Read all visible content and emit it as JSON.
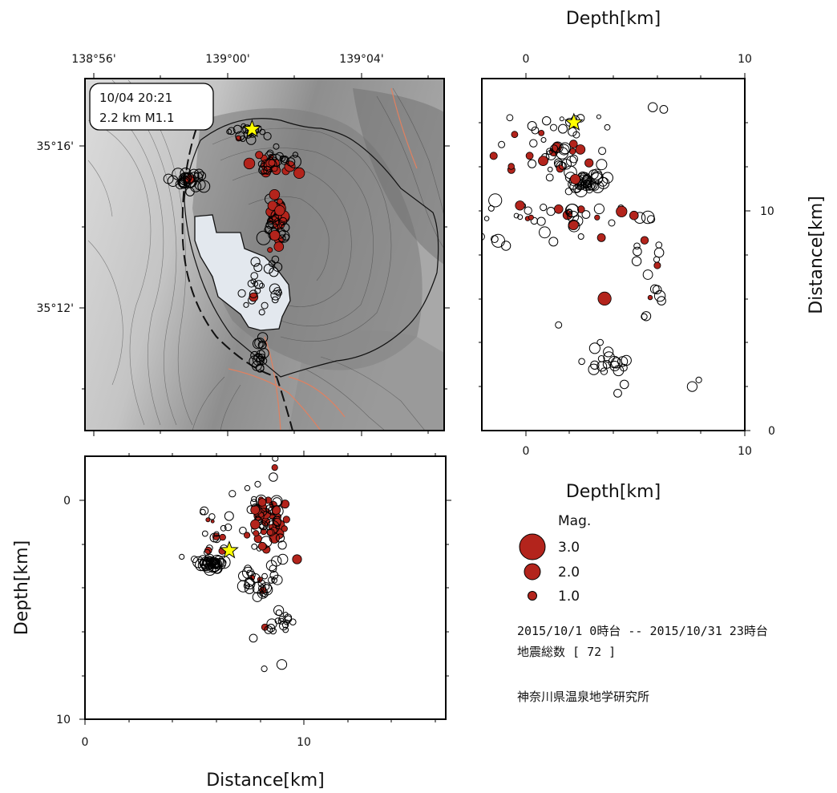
{
  "colors": {
    "quake_red": "#b3241c",
    "quake_outline": "#000000",
    "star_fill": "#ffff00",
    "caldera_fill": "#e3e8ee",
    "fault_line": "#e08060"
  },
  "map_panel": {
    "lon_ticks": [
      "138°56'",
      "139°00'",
      "139°04'"
    ],
    "lat_ticks": [
      "35°16'",
      "35°12'"
    ],
    "annotation": {
      "line1": "10/04 20:21",
      "line2": "2.2 km M1.1"
    }
  },
  "cross_section_ns": {
    "xlabel": "Depth[km]",
    "ylabel": "Distance[km]",
    "top_ticks": [
      "0",
      "10"
    ],
    "bottom_ticks": [
      "0",
      "10"
    ],
    "right_ticks": [
      "10",
      "0"
    ]
  },
  "cross_section_ew": {
    "xlabel": "Distance[km]",
    "ylabel": "Depth[km]",
    "x_ticks": [
      "0",
      "10"
    ],
    "y_ticks": [
      "0",
      "10"
    ]
  },
  "legend": {
    "title": "Mag.",
    "items": [
      {
        "label": "3.0",
        "mag": 3.0
      },
      {
        "label": "2.0",
        "mag": 2.0
      },
      {
        "label": "1.0",
        "mag": 1.0
      }
    ]
  },
  "info": {
    "period": "2015/10/1 0時台 -- 2015/10/31 23時台",
    "count_line": "地震総数 [ 72 ]",
    "institute": "神奈川県温泉地学研究所"
  },
  "chart_data": [
    {
      "type": "scatter",
      "panel": "map",
      "x_name": "longitude",
      "y_name": "latitude",
      "xlim": [
        138.9,
        139.13
      ],
      "ylim": [
        35.134,
        35.301
      ],
      "series": [
        {
          "clusters": [
            {
              "x": 138.967,
              "y": 35.253,
              "spread": [
                0.005,
                0.002
              ],
              "n": 30,
              "red_frac": 0.05,
              "mag": [
                0.8,
                1.4
              ]
            },
            {
              "x": 139.02,
              "y": 35.261,
              "spread": [
                0.007,
                0.003
              ],
              "n": 40,
              "red_frac": 0.4,
              "mag": [
                0.4,
                1.6
              ]
            },
            {
              "x": 139.022,
              "y": 35.233,
              "spread": [
                0.003,
                0.007
              ],
              "n": 45,
              "red_frac": 0.6,
              "mag": [
                0.5,
                1.7
              ]
            },
            {
              "x": 139.006,
              "y": 35.276,
              "spread": [
                0.006,
                0.002
              ],
              "n": 18,
              "red_frac": 0.1,
              "mag": [
                0.3,
                1.1
              ]
            },
            {
              "x": 139.012,
              "y": 35.203,
              "spread": [
                0.008,
                0.007
              ],
              "n": 25,
              "red_frac": 0.05,
              "mag": [
                0.3,
                1.2
              ]
            },
            {
              "x": 139.012,
              "y": 35.17,
              "spread": [
                0.002,
                0.004
              ],
              "n": 18,
              "red_frac": 0.0,
              "mag": [
                0.6,
                1.3
              ]
            }
          ]
        }
      ],
      "mainshock": {
        "lon": 139.007,
        "lat": 35.277,
        "depth": 2.2,
        "mag": 1.1
      }
    },
    {
      "type": "scatter",
      "panel": "cross-section-ns",
      "x_name": "depth_km",
      "y_name": "distance_km",
      "xlim": [
        -2,
        10
      ],
      "ylim": [
        0,
        16
      ],
      "series": [
        {
          "clusters": [
            {
              "x": 2.8,
              "y": 11.3,
              "spread": [
                0.4,
                0.2
              ],
              "n": 35,
              "red_frac": 0.05,
              "mag": [
                0.6,
                1.5
              ]
            },
            {
              "x": 1.2,
              "y": 12.4,
              "spread": [
                1.1,
                0.4
              ],
              "n": 35,
              "red_frac": 0.2,
              "mag": [
                0.3,
                1.4
              ]
            },
            {
              "x": 2.0,
              "y": 9.6,
              "spread": [
                2.0,
                0.5
              ],
              "n": 40,
              "red_frac": 0.3,
              "mag": [
                0.3,
                1.6
              ]
            },
            {
              "x": 3.8,
              "y": 3.1,
              "spread": [
                0.4,
                0.3
              ],
              "n": 18,
              "red_frac": 0.0,
              "mag": [
                0.5,
                1.4
              ]
            },
            {
              "x": 5.5,
              "y": 7.5,
              "spread": [
                0.6,
                1.2
              ],
              "n": 16,
              "red_frac": 0.1,
              "mag": [
                0.4,
                1.3
              ]
            },
            {
              "x": 1.5,
              "y": 13.8,
              "spread": [
                1.5,
                0.4
              ],
              "n": 18,
              "red_frac": 0.15,
              "mag": [
                0.2,
                1.0
              ]
            }
          ]
        }
      ],
      "singles": [
        {
          "x": 5.8,
          "y": 14.7,
          "mag": 1.0
        },
        {
          "x": 6.3,
          "y": 14.6,
          "mag": 0.8
        },
        {
          "x": 7.6,
          "y": 2.0,
          "mag": 1.1
        },
        {
          "x": 7.9,
          "y": 2.3,
          "mag": 0.5
        },
        {
          "x": -1.1,
          "y": 13.0,
          "mag": 0.6
        },
        {
          "x": -0.9,
          "y": 8.4,
          "mag": 1.0
        },
        {
          "x": 3.6,
          "y": 6.0,
          "mag": 1.6,
          "red": true
        },
        {
          "x": 1.5,
          "y": 4.8,
          "mag": 0.6
        },
        {
          "x": 4.2,
          "y": 1.7,
          "mag": 0.8
        },
        {
          "x": 4.5,
          "y": 2.1,
          "mag": 0.9
        },
        {
          "x": 6.2,
          "y": 5.9,
          "mag": 0.9
        },
        {
          "x": 5.5,
          "y": 5.2,
          "mag": 1.0
        }
      ],
      "mainshock": {
        "x": 2.2,
        "y": 14.0
      }
    },
    {
      "type": "scatter",
      "panel": "cross-section-ew",
      "x_name": "distance_km",
      "y_name": "depth_km",
      "xlim": [
        0,
        16.5
      ],
      "ylim": [
        -2,
        10
      ],
      "series": [
        {
          "clusters": [
            {
              "x": 5.8,
              "y": 2.9,
              "spread": [
                0.25,
                0.12
              ],
              "n": 35,
              "red_frac": 0.0,
              "mag": [
                0.6,
                1.5
              ]
            },
            {
              "x": 8.6,
              "y": 1.1,
              "spread": [
                0.3,
                0.8
              ],
              "n": 45,
              "red_frac": 0.55,
              "mag": [
                0.4,
                1.6
              ]
            },
            {
              "x": 7.9,
              "y": 0.8,
              "spread": [
                0.25,
                0.7
              ],
              "n": 25,
              "red_frac": 0.25,
              "mag": [
                0.3,
                1.3
              ]
            },
            {
              "x": 8.1,
              "y": 3.8,
              "spread": [
                0.5,
                0.4
              ],
              "n": 30,
              "red_frac": 0.1,
              "mag": [
                0.3,
                1.4
              ]
            },
            {
              "x": 9.0,
              "y": 5.6,
              "spread": [
                0.4,
                0.3
              ],
              "n": 18,
              "red_frac": 0.1,
              "mag": [
                0.3,
                1.1
              ]
            },
            {
              "x": 6.3,
              "y": 1.4,
              "spread": [
                0.7,
                0.8
              ],
              "n": 25,
              "red_frac": 0.25,
              "mag": [
                0.2,
                1.0
              ]
            }
          ]
        }
      ],
      "singles": [
        {
          "x": 8.7,
          "y": -1.9,
          "mag": 0.5
        },
        {
          "x": 9.0,
          "y": 7.5,
          "mag": 1.1
        },
        {
          "x": 8.2,
          "y": 7.7,
          "mag": 0.5
        },
        {
          "x": 5.0,
          "y": 2.7,
          "mag": 0.6
        },
        {
          "x": 9.7,
          "y": 2.7,
          "mag": 1.0,
          "red": true
        },
        {
          "x": 7.7,
          "y": 6.3,
          "mag": 0.8
        }
      ],
      "mainshock": {
        "x": 6.6,
        "y": 2.3
      }
    }
  ]
}
